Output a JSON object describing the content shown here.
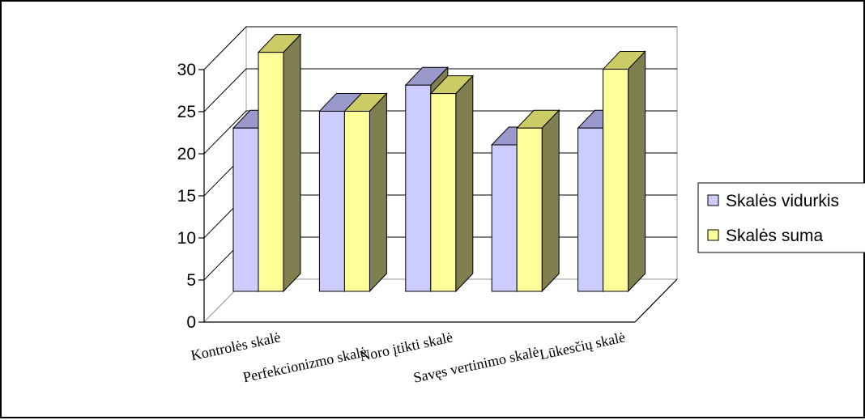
{
  "chart_data": {
    "type": "bar",
    "categories": [
      "Kontrolės skalė",
      "Perfekcionizmo skalė",
      "Noro įtikti skalė",
      "Savęs vertinimo skalė",
      "Lūkesčių skalė"
    ],
    "series": [
      {
        "name": "Skalės vidurkis",
        "values": [
          19.4,
          21.4,
          24.5,
          17.4,
          19.4
        ],
        "color": "#ccccff"
      },
      {
        "name": "Skalės suma",
        "values": [
          28.4,
          21.4,
          23.5,
          19.4,
          26.4
        ],
        "color": "#ffff99"
      }
    ],
    "yticks": [
      "0",
      "5",
      "10",
      "15",
      "20",
      "25",
      "30"
    ],
    "ylim": [
      0,
      30
    ],
    "grid": true,
    "legend_position": "right"
  },
  "colors": {
    "series1_top": "#9999cc",
    "series2_top": "#cccc66",
    "bar_side": "#7f7f50",
    "wall": "#ffffff",
    "grid": "#000000"
  }
}
